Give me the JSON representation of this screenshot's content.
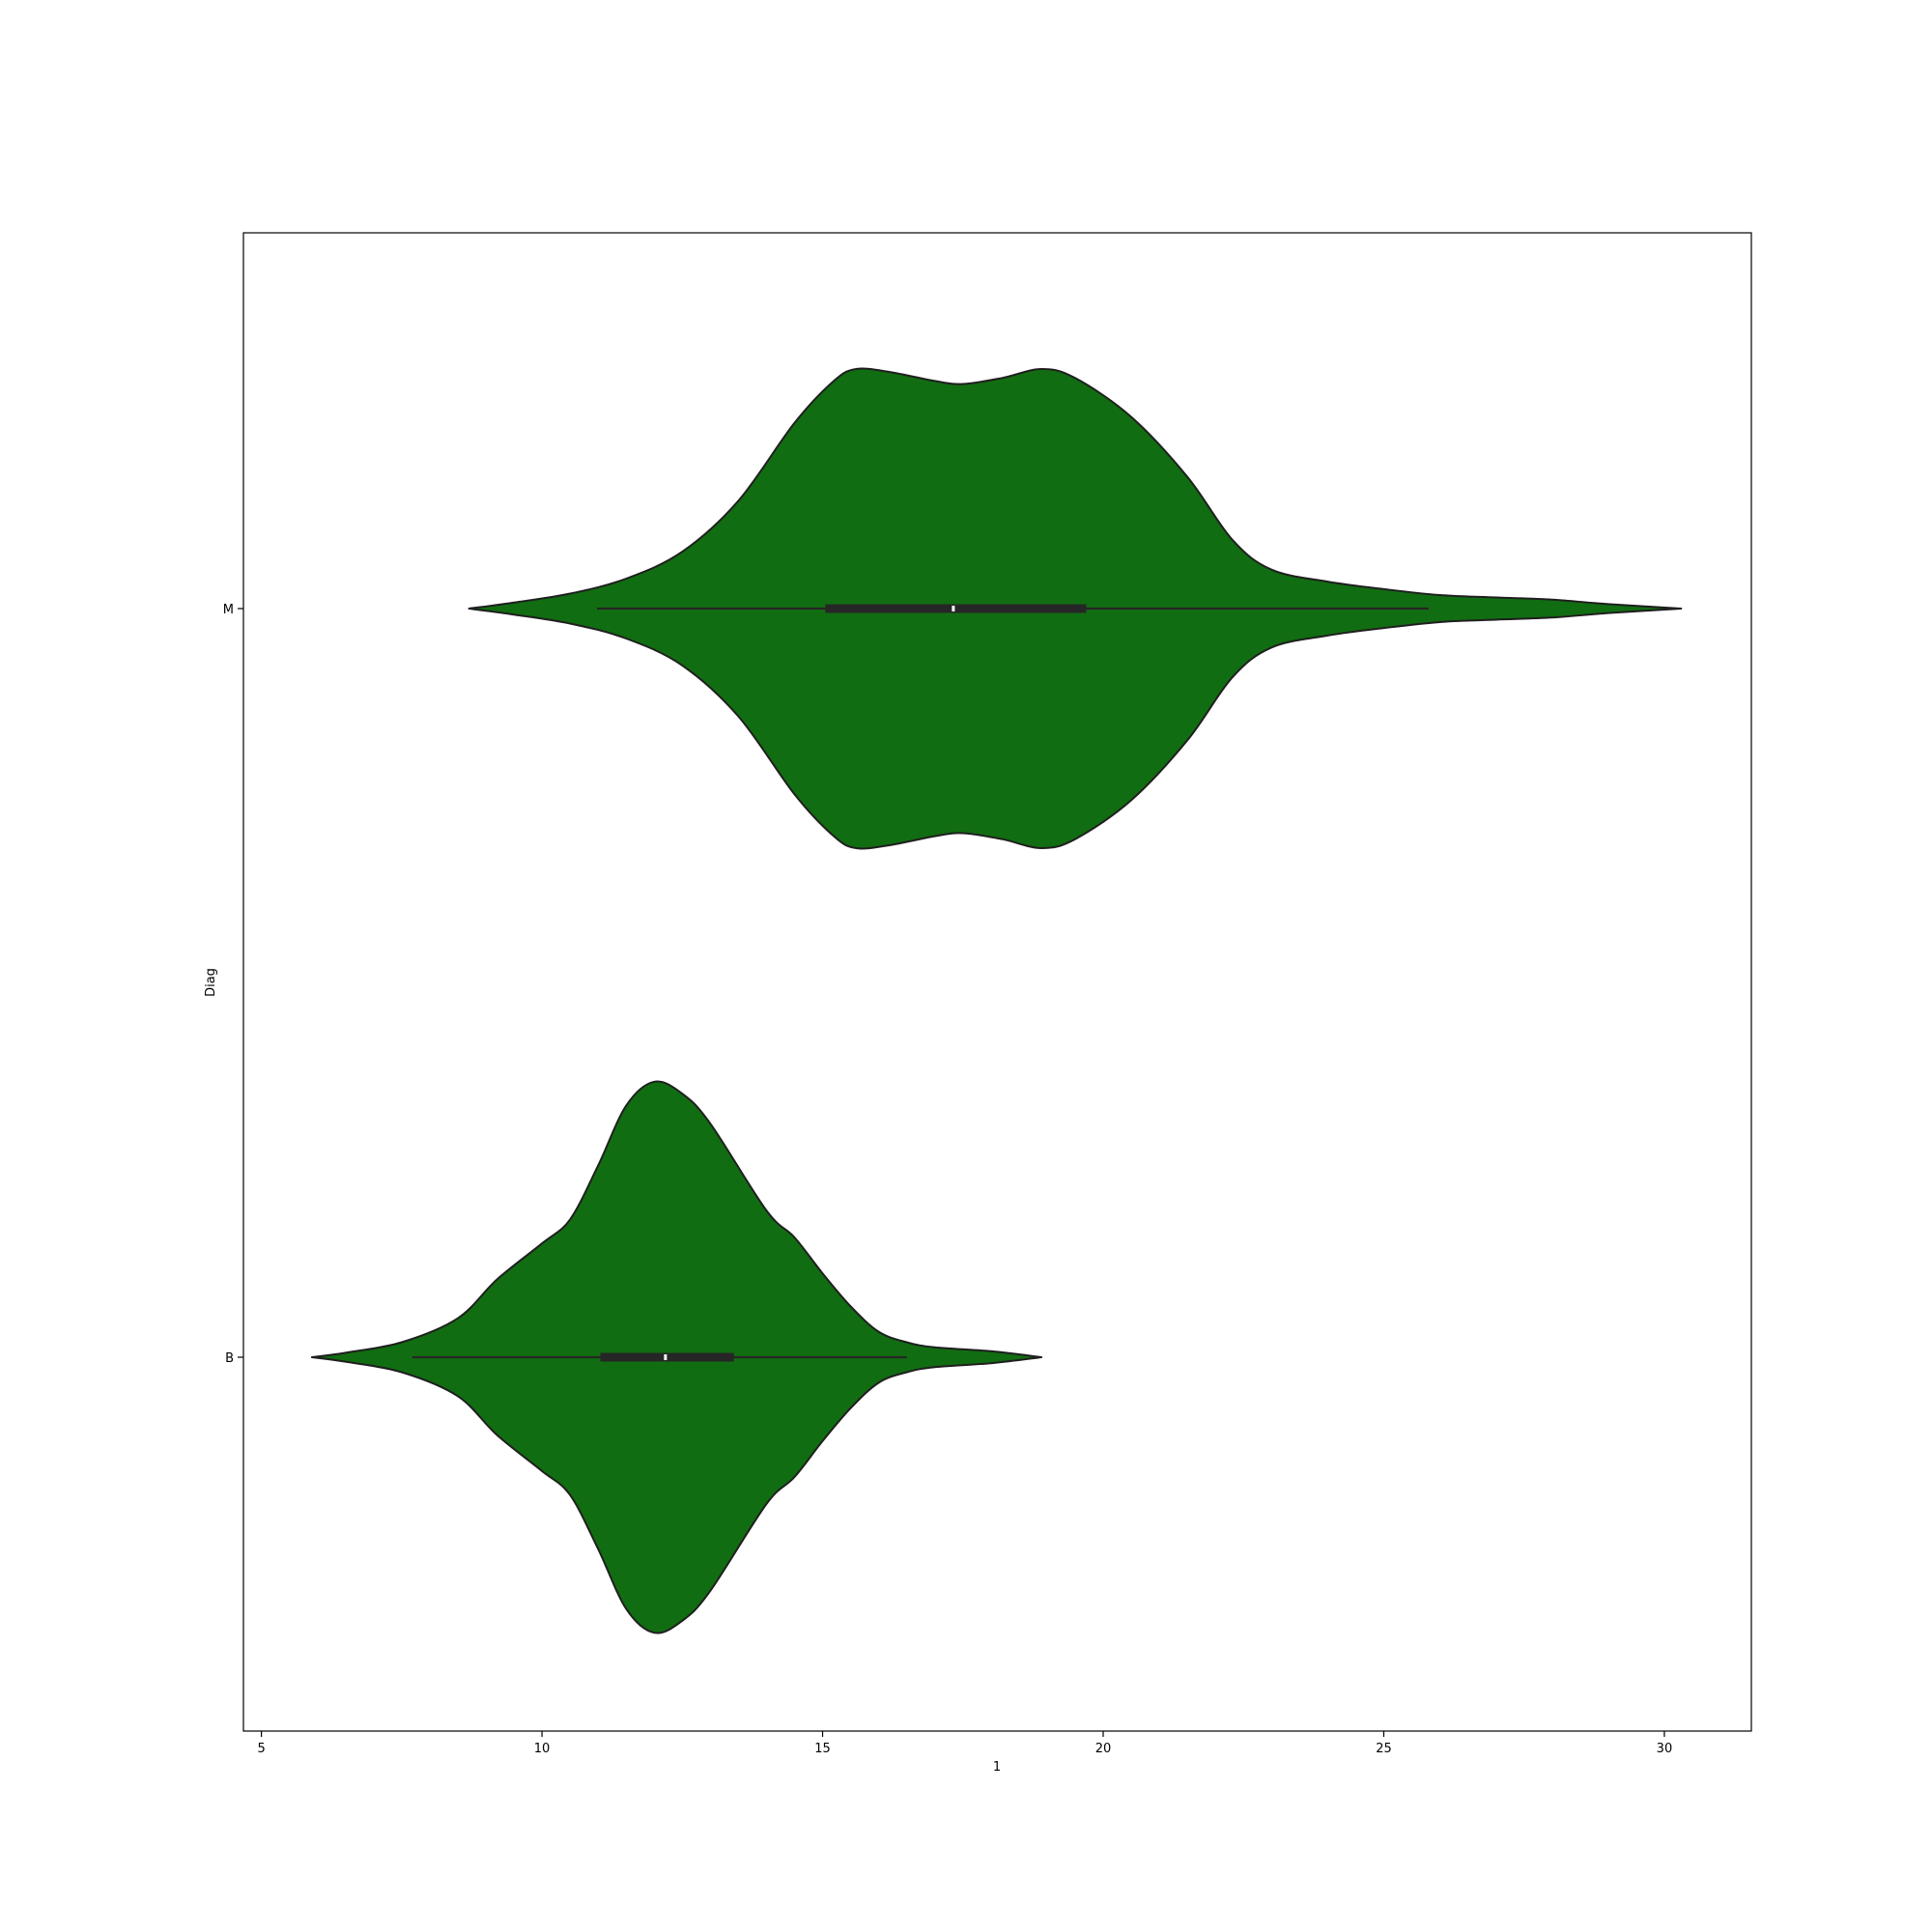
{
  "chart_data": {
    "type": "violin",
    "orientation": "horizontal",
    "xlabel": "1",
    "ylabel": "Diag",
    "xlim": [
      4.68,
      31.55
    ],
    "x_ticks": [
      5,
      10,
      15,
      20,
      25,
      30
    ],
    "categories": [
      "M",
      "B"
    ],
    "fill_color": "#116d11",
    "edge_color": "#1f1f1f",
    "box_color": "#262626",
    "violins": [
      {
        "category": "M",
        "min": 10.98,
        "q1": 15.05,
        "median": 17.33,
        "q3": 19.7,
        "max": 25.8,
        "kde_min": 8.7,
        "kde_max": 30.3,
        "density_profile": [
          [
            8.7,
            0.0
          ],
          [
            9.5,
            0.02
          ],
          [
            10.5,
            0.05
          ],
          [
            11.5,
            0.1
          ],
          [
            12.5,
            0.19
          ],
          [
            13.5,
            0.36
          ],
          [
            14.5,
            0.62
          ],
          [
            15.2,
            0.76
          ],
          [
            15.6,
            0.8
          ],
          [
            16.2,
            0.79
          ],
          [
            17.0,
            0.76
          ],
          [
            17.5,
            0.75
          ],
          [
            18.2,
            0.77
          ],
          [
            18.9,
            0.8
          ],
          [
            19.5,
            0.77
          ],
          [
            20.5,
            0.64
          ],
          [
            21.5,
            0.44
          ],
          [
            22.3,
            0.23
          ],
          [
            23.0,
            0.13
          ],
          [
            24.0,
            0.09
          ],
          [
            25.0,
            0.065
          ],
          [
            26.0,
            0.045
          ],
          [
            27.0,
            0.037
          ],
          [
            28.0,
            0.03
          ],
          [
            29.0,
            0.015
          ],
          [
            30.3,
            0.0
          ]
        ]
      },
      {
        "category": "B",
        "min": 7.69,
        "q1": 11.04,
        "median": 12.2,
        "q3": 13.42,
        "max": 16.5,
        "kde_min": 5.9,
        "kde_max": 18.9,
        "density_profile": [
          [
            5.9,
            0.0
          ],
          [
            6.5,
            0.015
          ],
          [
            7.5,
            0.05
          ],
          [
            8.5,
            0.13
          ],
          [
            9.2,
            0.26
          ],
          [
            10.0,
            0.38
          ],
          [
            10.5,
            0.46
          ],
          [
            11.0,
            0.64
          ],
          [
            11.5,
            0.84
          ],
          [
            12.0,
            0.92
          ],
          [
            12.5,
            0.88
          ],
          [
            13.0,
            0.78
          ],
          [
            14.0,
            0.49
          ],
          [
            14.5,
            0.4
          ],
          [
            15.0,
            0.28
          ],
          [
            15.5,
            0.17
          ],
          [
            16.0,
            0.085
          ],
          [
            16.5,
            0.05
          ],
          [
            17.0,
            0.033
          ],
          [
            18.0,
            0.02
          ],
          [
            18.9,
            0.0
          ]
        ]
      }
    ]
  }
}
